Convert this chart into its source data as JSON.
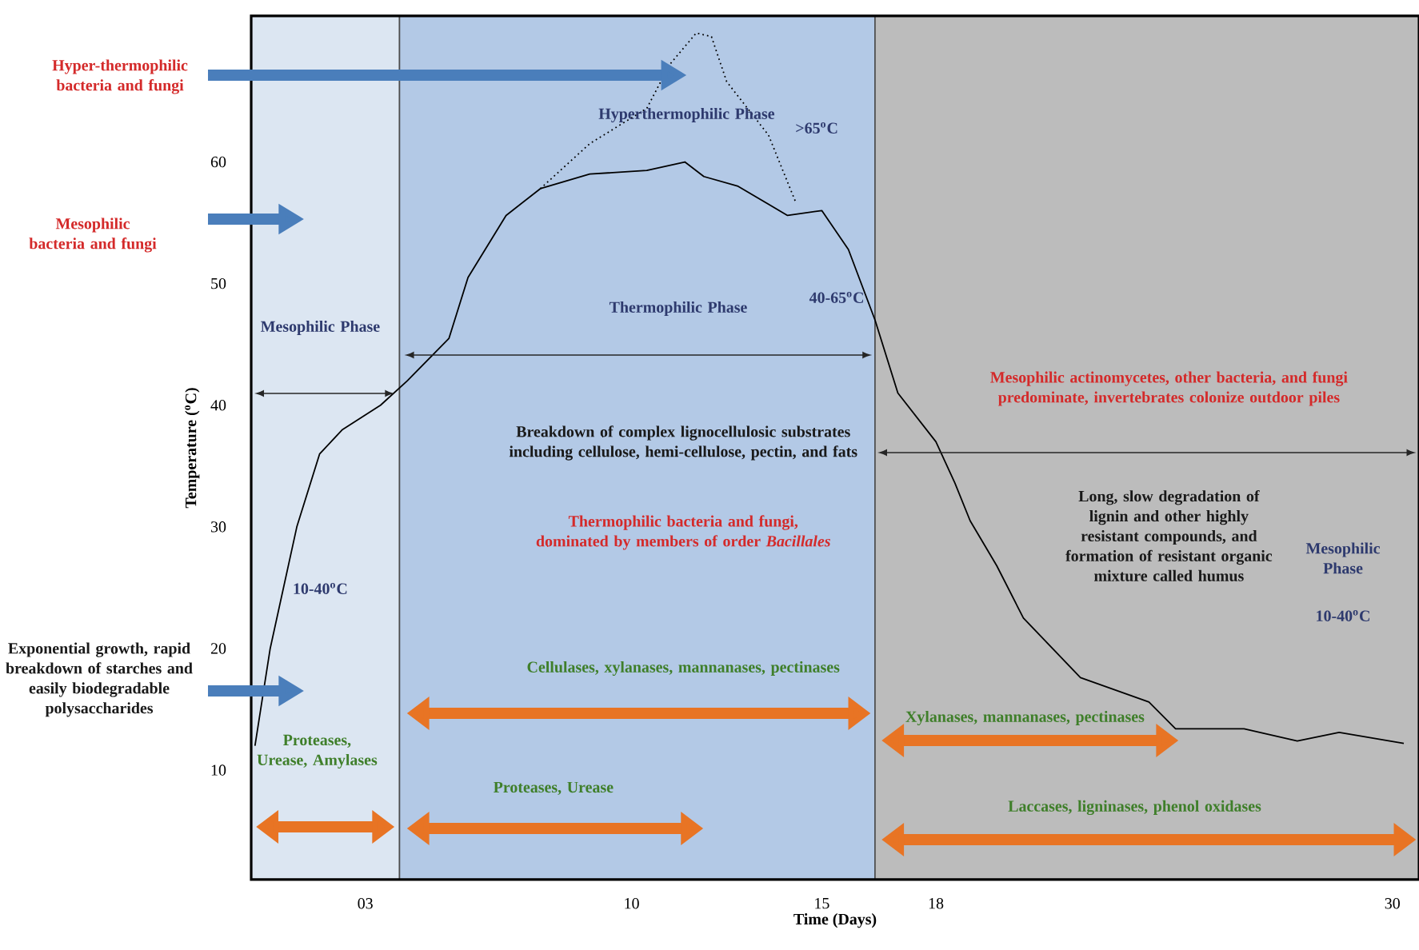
{
  "chart_data": {
    "type": "line",
    "xlabel": "Time (Days)",
    "ylabel": "Temperature ($^{o}$C)",
    "xlim": [
      0,
      30.7
    ],
    "ylim": [
      1,
      72
    ],
    "xticks": [
      {
        "value": 3,
        "label": "03"
      },
      10,
      15,
      18,
      30
    ],
    "yticks": [
      10,
      20,
      30,
      40,
      50,
      60
    ],
    "grid": false,
    "marker": "none",
    "bands": [
      {
        "axis": "x",
        "from": 0,
        "to": 3.9,
        "color": "#dce6f2"
      },
      {
        "axis": "x",
        "from": 3.9,
        "to": 16.4,
        "color": "#b3c9e6"
      },
      {
        "axis": "x",
        "from": 16.4,
        "to": 30.7,
        "color": "#bcbcbc"
      }
    ],
    "series": [
      {
        "color": "#000000",
        "line_style": "solid",
        "x": [
          0.1,
          0.5,
          1.2,
          1.8,
          2.4,
          3.4,
          4.1,
          5.2,
          5.7,
          6.7,
          7.6,
          8.9,
          10.4,
          11.4,
          11.9,
          12.8,
          14.1,
          15,
          15.7,
          16.4,
          17,
          18,
          18.5,
          18.9,
          19.6,
          20.3,
          21.8,
          23.6,
          24.3,
          26.1,
          27.5,
          28.6,
          30.3
        ],
        "values": [
          12,
          20,
          30,
          36,
          38,
          40,
          42,
          45.5,
          50.5,
          55.6,
          57.8,
          59,
          59.3,
          60,
          58.8,
          58,
          55.6,
          56,
          52.8,
          47,
          41,
          37,
          33.6,
          30.5,
          26.8,
          22.5,
          17.6,
          15.6,
          13.4,
          13.4,
          12.4,
          13.1,
          12.2
        ]
      },
      {
        "color": "#000000",
        "line_style": "dotted",
        "x": [
          7.6,
          8.9,
          10.4,
          11,
          11.7,
          12.1,
          12.5,
          13.6,
          14.3
        ],
        "values": [
          57.8,
          61.5,
          64.4,
          68,
          70.6,
          70.3,
          66.6,
          62.2,
          56.8
        ]
      }
    ],
    "annotations": [
      "Hyper-thermophilic bacteria and fungi",
      "Mesophilic bacteria and fungi",
      "Exponential growth, rapid breakdown of starches and easily biodegradable polysaccharides",
      "Hyperthermophilic Phase",
      ">65$^{o}$C",
      "Thermophilic Phase",
      "40-65$^{o}$C",
      "Breakdown of complex lignocellulosic substrates including cellulose, hemi-cellulose, pectin, and fats",
      "Mesophilic Phase",
      "10-40$^{o}$C",
      "Thermophilic bacteria and fungi, dominated by members of order *Bacillales*",
      "Cellulases, xylanases, mannanases, pectinases",
      "Proteases, Urease, Amylases",
      "Proteases, Urease",
      "Mesophilic actinomycetes, other bacteria, and fungi predominate, invertebrates colonize outdoor piles",
      "Long, slow degradation of lignin and other highly resistant compounds, and formation of resistant organic mixture called humus",
      "Mesophilic Phase",
      "10-40$^{o}$C",
      "Xylanases, mannanases, pectinases",
      "Laccases, ligninases, phenol oxidases"
    ]
  }
}
